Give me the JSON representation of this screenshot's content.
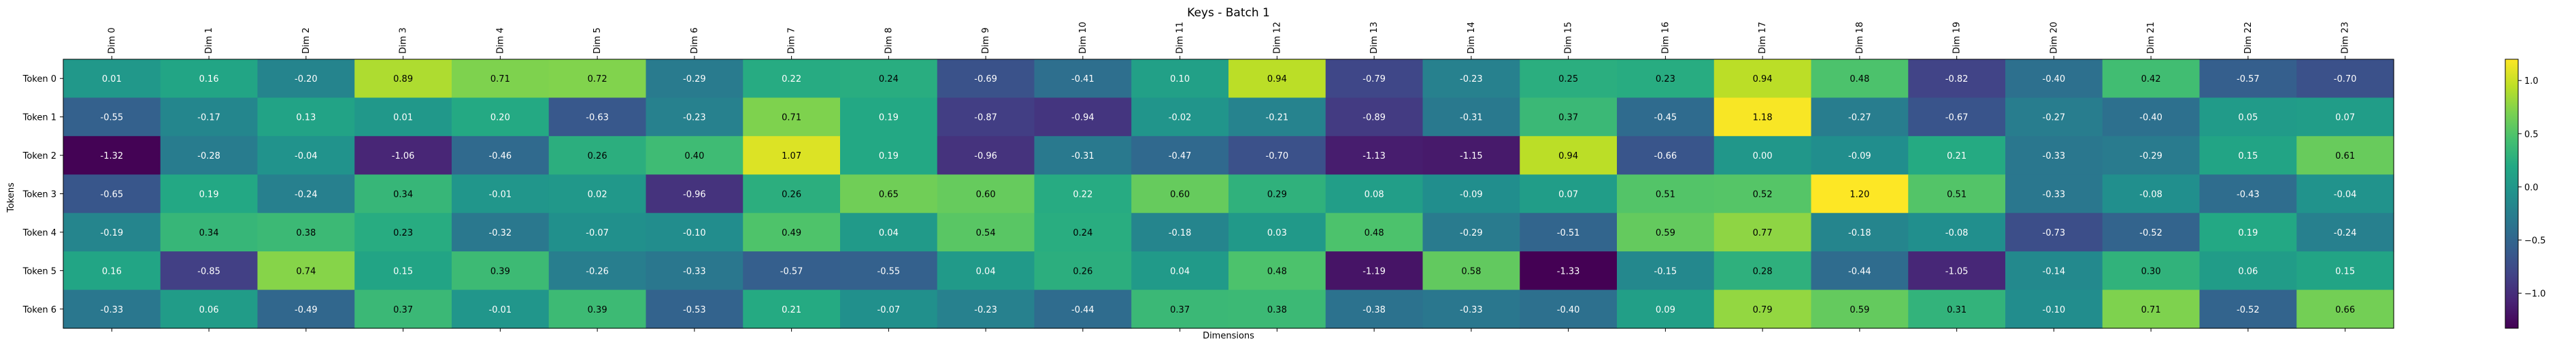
{
  "chart_data": {
    "type": "heatmap",
    "title": "Keys - Batch 1",
    "xlabel": "Dimensions",
    "ylabel": "Tokens",
    "x_categories": [
      "Dim 0",
      "Dim 1",
      "Dim 2",
      "Dim 3",
      "Dim 4",
      "Dim 5",
      "Dim 6",
      "Dim 7",
      "Dim 8",
      "Dim 9",
      "Dim 10",
      "Dim 11",
      "Dim 12",
      "Dim 13",
      "Dim 14",
      "Dim 15",
      "Dim 16",
      "Dim 17",
      "Dim 18",
      "Dim 19",
      "Dim 20",
      "Dim 21",
      "Dim 22",
      "Dim 23"
    ],
    "y_categories": [
      "Token 0",
      "Token 1",
      "Token 2",
      "Token 3",
      "Token 4",
      "Token 5",
      "Token 6"
    ],
    "values": [
      [
        0.01,
        0.16,
        -0.2,
        0.89,
        0.71,
        0.72,
        -0.29,
        0.22,
        0.24,
        -0.69,
        -0.41,
        0.1,
        0.94,
        -0.79,
        -0.23,
        0.25,
        0.23,
        0.94,
        0.48,
        -0.82,
        -0.4,
        0.42,
        -0.57,
        -0.7
      ],
      [
        -0.55,
        -0.17,
        0.13,
        0.01,
        0.2,
        -0.63,
        -0.23,
        0.71,
        0.19,
        -0.87,
        -0.94,
        -0.02,
        -0.21,
        -0.89,
        -0.31,
        0.37,
        -0.45,
        1.18,
        -0.27,
        -0.67,
        -0.27,
        -0.4,
        0.05,
        0.07
      ],
      [
        -1.32,
        -0.28,
        -0.04,
        -1.06,
        -0.46,
        0.26,
        0.4,
        1.07,
        0.19,
        -0.96,
        -0.31,
        -0.47,
        -0.7,
        -1.13,
        -1.15,
        0.94,
        -0.66,
        0.0,
        -0.09,
        0.21,
        -0.33,
        -0.29,
        0.15,
        0.61
      ],
      [
        -0.65,
        0.19,
        -0.24,
        0.34,
        -0.01,
        0.02,
        -0.96,
        0.26,
        0.65,
        0.6,
        0.22,
        0.6,
        0.29,
        0.08,
        -0.09,
        0.07,
        0.51,
        0.52,
        1.2,
        0.51,
        -0.33,
        -0.08,
        -0.43,
        -0.04
      ],
      [
        -0.19,
        0.34,
        0.38,
        0.23,
        -0.32,
        -0.07,
        -0.1,
        0.49,
        0.04,
        0.54,
        0.24,
        -0.18,
        0.03,
        0.48,
        -0.29,
        -0.51,
        0.59,
        0.77,
        -0.18,
        -0.08,
        -0.73,
        -0.52,
        0.19,
        -0.24
      ],
      [
        0.16,
        -0.85,
        0.74,
        0.15,
        0.39,
        -0.26,
        -0.33,
        -0.57,
        -0.55,
        0.04,
        0.26,
        0.04,
        0.48,
        -1.19,
        0.58,
        -1.33,
        -0.15,
        0.28,
        -0.44,
        -1.05,
        -0.14,
        0.3,
        0.06,
        0.15
      ],
      [
        -0.33,
        0.06,
        -0.49,
        0.37,
        -0.01,
        0.39,
        -0.53,
        0.21,
        -0.07,
        -0.23,
        -0.44,
        0.37,
        0.38,
        -0.38,
        -0.33,
        -0.4,
        0.09,
        0.79,
        0.59,
        0.31,
        -0.1,
        0.71,
        -0.52,
        0.66
      ]
    ],
    "cell_labels": [
      [
        "0.01",
        "0.16",
        "-0.20",
        "0.89",
        "0.71",
        "0.72",
        "-0.29",
        "0.22",
        "0.24",
        "-0.69",
        "-0.41",
        "0.10",
        "0.94",
        "-0.79",
        "-0.23",
        "0.25",
        "0.23",
        "0.94",
        "0.48",
        "-0.82",
        "-0.40",
        "0.42",
        "-0.57",
        "-0.70"
      ],
      [
        "-0.55",
        "-0.17",
        "0.13",
        "0.01",
        "0.20",
        "-0.63",
        "-0.23",
        "0.71",
        "0.19",
        "-0.87",
        "-0.94",
        "-0.02",
        "-0.21",
        "-0.89",
        "-0.31",
        "0.37",
        "-0.45",
        "1.18",
        "-0.27",
        "-0.67",
        "-0.27",
        "-0.40",
        "0.05",
        "0.07"
      ],
      [
        "-1.32",
        "-0.28",
        "-0.04",
        "-1.06",
        "-0.46",
        "0.26",
        "0.40",
        "1.07",
        "0.19",
        "-0.96",
        "-0.31",
        "-0.47",
        "-0.70",
        "-1.13",
        "-1.15",
        "0.94",
        "-0.66",
        "0.00",
        "-0.09",
        "0.21",
        "-0.33",
        "-0.29",
        "0.15",
        "0.61"
      ],
      [
        "-0.65",
        "0.19",
        "-0.24",
        "0.34",
        "-0.01",
        "0.02",
        "-0.96",
        "0.26",
        "0.65",
        "0.60",
        "0.22",
        "0.60",
        "0.29",
        "0.08",
        "-0.09",
        "0.07",
        "0.51",
        "0.52",
        "1.20",
        "0.51",
        "-0.33",
        "-0.08",
        "-0.43",
        "-0.04"
      ],
      [
        "-0.19",
        "0.34",
        "0.38",
        "0.23",
        "-0.32",
        "-0.07",
        "-0.10",
        "0.49",
        "0.04",
        "0.54",
        "0.24",
        "-0.18",
        "0.03",
        "0.48",
        "-0.29",
        "-0.51",
        "0.59",
        "0.77",
        "-0.18",
        "-0.08",
        "-0.73",
        "-0.52",
        "0.19",
        "-0.24"
      ],
      [
        "0.16",
        "-0.85",
        "0.74",
        "0.15",
        "0.39",
        "-0.26",
        "-0.33",
        "-0.57",
        "-0.55",
        "0.04",
        "0.26",
        "0.04",
        "0.48",
        "-1.19",
        "0.58",
        "-1.33",
        "-0.15",
        "0.28",
        "-0.44",
        "-1.05",
        "-0.14",
        "0.30",
        "0.06",
        "0.15"
      ],
      [
        "-0.33",
        "0.06",
        "-0.49",
        "0.37",
        "-0.01",
        "0.39",
        "-0.53",
        "0.21",
        "-0.07",
        "-0.23",
        "-0.44",
        "0.37",
        "0.38",
        "-0.38",
        "-0.33",
        "-0.40",
        "0.09",
        "0.79",
        "0.59",
        "0.31",
        "-0.10",
        "0.71",
        "-0.52",
        "0.66"
      ]
    ],
    "colormap": "viridis",
    "color_range": [
      -1.33,
      1.2
    ],
    "colorbar": {
      "ticks": [
        1.0,
        0.5,
        0.0,
        -0.5,
        -1.0
      ],
      "tick_labels": [
        "1.0",
        "0.5",
        "0.0",
        "−0.5",
        "−1.0"
      ]
    },
    "grid": false,
    "legend": "colorbar-right"
  }
}
